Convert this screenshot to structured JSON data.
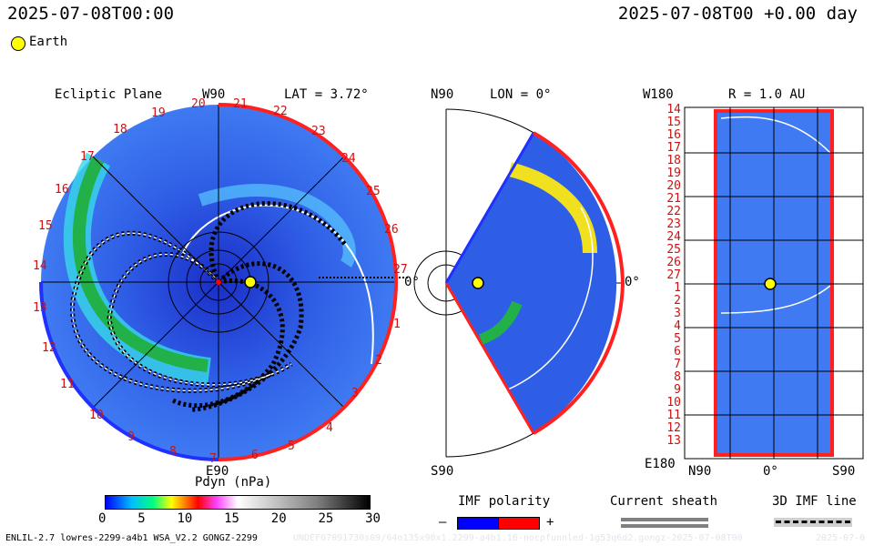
{
  "header": {
    "timestamp_left": "2025-07-08T00:00",
    "timestamp_right": "2025-07-08T00 +0.00 day",
    "legend_body": "Earth"
  },
  "ecliptic": {
    "title": "Ecliptic Plane",
    "top_label": "W90",
    "bottom_label": "E90",
    "lat": "LAT = 3.72°",
    "zero_label": "0°",
    "hours": [
      "19",
      "20",
      "21",
      "22",
      "23",
      "24",
      "25",
      "26",
      "27",
      "1",
      "2",
      "3",
      "18",
      "17",
      "16",
      "15",
      "14",
      "13",
      "12",
      "11",
      "10",
      "9",
      "8",
      "7",
      "6",
      "5",
      "4"
    ]
  },
  "meridional": {
    "top_label": "N90",
    "bottom_label": "S90",
    "lon": "LON = 0°",
    "zero_label": "0°"
  },
  "radial": {
    "title": "R = 1.0 AU",
    "top_left": "W180",
    "bottom_left": "E180",
    "x_left": "N90",
    "x_mid": "0°",
    "x_right": "S90",
    "ticks": [
      "14",
      "15",
      "16",
      "17",
      "18",
      "19",
      "20",
      "21",
      "22",
      "23",
      "24",
      "25",
      "26",
      "27",
      "1",
      "2",
      "3",
      "4",
      "5",
      "6",
      "7",
      "8",
      "9",
      "10",
      "11",
      "12",
      "13"
    ]
  },
  "colorbar": {
    "title": "Pdyn (nPa)",
    "ticks": [
      "0",
      "5",
      "10",
      "15",
      "20",
      "25",
      "30"
    ]
  },
  "imf_polarity": {
    "title": "IMF polarity",
    "minus": "–",
    "plus": "+",
    "neg_color": "#0000ff",
    "pos_color": "#ff0000"
  },
  "current_sheath": {
    "title": "Current sheath"
  },
  "imf_line": {
    "title": "3D IMF line"
  },
  "footer": {
    "model": "ENLIL-2.7 lowres-2299-a4b1 WSA_V2.2 GONGZ-2299",
    "run_id": "UNDEF07091730s09/64o135x90x1.2299-a4b1.16-nocpfunnled-1g53q6d2.gongz-2025-07-08T00",
    "run_date": "2025-07-0"
  }
}
